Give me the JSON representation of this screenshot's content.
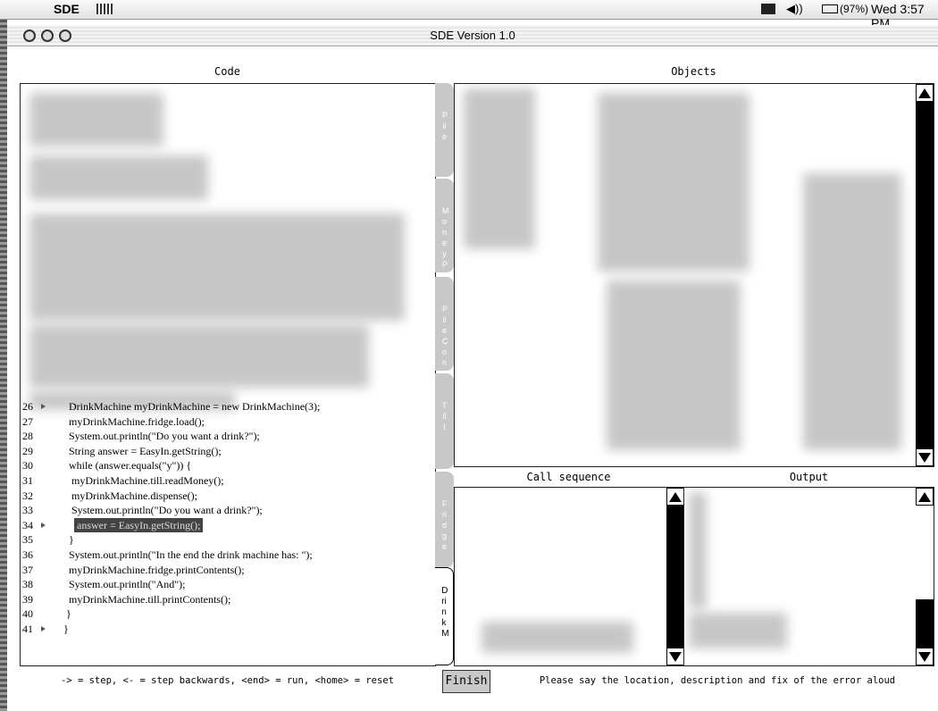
{
  "menubar": {
    "app": "SDE",
    "battery": "(97%)",
    "clock": "Wed 3:57 PM"
  },
  "window": {
    "title": "SDE Version 1.0"
  },
  "panels": {
    "code": "Code",
    "objects": "Objects",
    "call_sequence": "Call sequence",
    "output": "Output"
  },
  "tabs": [
    {
      "label": "Pile",
      "active": false
    },
    {
      "label": "MoneyP",
      "active": false
    },
    {
      "label": "PileCon",
      "active": false
    },
    {
      "label": "Till",
      "active": false
    },
    {
      "label": "Fridge",
      "active": false
    },
    {
      "label": "DrinkM",
      "active": true
    }
  ],
  "code_lines": [
    {
      "number": "26",
      "text": "  DrinkMachine myDrinkMachine = new DrinkMachine(3);",
      "marked": true,
      "highlight": false
    },
    {
      "number": "27",
      "text": "  myDrinkMachine.fridge.load();",
      "marked": false,
      "highlight": false
    },
    {
      "number": "28",
      "text": "  System.out.println(\"Do you want a drink?\");",
      "marked": false,
      "highlight": false
    },
    {
      "number": "29",
      "text": "  String answer = EasyIn.getString();",
      "marked": false,
      "highlight": false
    },
    {
      "number": "30",
      "text": "  while (answer.equals(\"y\")) {",
      "marked": false,
      "highlight": false
    },
    {
      "number": "31",
      "text": "   myDrinkMachine.till.readMoney();",
      "marked": false,
      "highlight": false
    },
    {
      "number": "32",
      "text": "   myDrinkMachine.dispense();",
      "marked": false,
      "highlight": false
    },
    {
      "number": "33",
      "text": "   System.out.println(\"Do you want a drink?\");",
      "marked": false,
      "highlight": false
    },
    {
      "number": "34",
      "text": "answer = EasyIn.getString();",
      "marked": true,
      "highlight": true
    },
    {
      "number": "35",
      "text": "  }",
      "marked": false,
      "highlight": false
    },
    {
      "number": "36",
      "text": "  System.out.println(\"In the end the drink machine has: \");",
      "marked": false,
      "highlight": false
    },
    {
      "number": "37",
      "text": "  myDrinkMachine.fridge.printContents();",
      "marked": false,
      "highlight": false
    },
    {
      "number": "38",
      "text": "  System.out.println(\"And\");",
      "marked": false,
      "highlight": false
    },
    {
      "number": "39",
      "text": "  myDrinkMachine.till.printContents();",
      "marked": false,
      "highlight": false
    },
    {
      "number": "40",
      "text": " }",
      "marked": false,
      "highlight": false
    },
    {
      "number": "41",
      "text": "}",
      "marked": true,
      "highlight": false
    }
  ],
  "footer": {
    "keys": "-> = step, <- = step backwards, <end> = run, <home> = reset",
    "button": "Finish",
    "instruction": "Please say the location, description and fix of the error aloud"
  }
}
